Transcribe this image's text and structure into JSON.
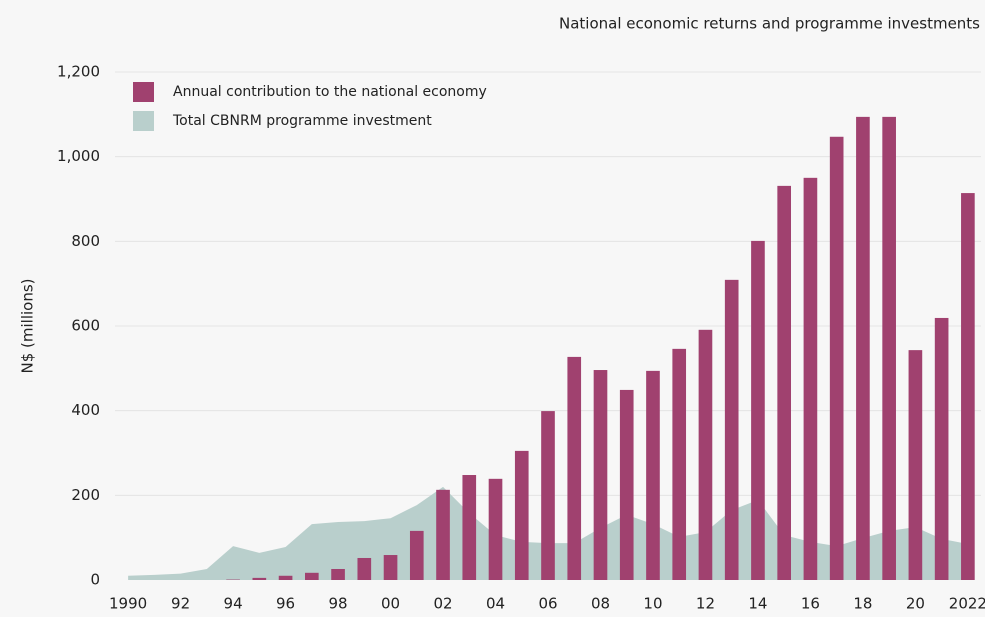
{
  "chart_data": {
    "type": "bar+area",
    "title": "National economic returns and programme investments",
    "ylabel": "N$ (millions)",
    "x": [
      1990,
      1991,
      1992,
      1993,
      1994,
      1995,
      1996,
      1997,
      1998,
      1999,
      2000,
      2001,
      2002,
      2003,
      2004,
      2005,
      2006,
      2007,
      2008,
      2009,
      2010,
      2011,
      2012,
      2013,
      2014,
      2015,
      2016,
      2017,
      2018,
      2019,
      2020,
      2021,
      2022
    ],
    "series": [
      {
        "name": "Annual contribution to the national economy",
        "color": "#a0416f",
        "kind": "bar",
        "values": [
          0,
          0,
          0,
          0,
          1,
          5,
          10,
          17,
          26,
          52,
          59,
          116,
          213,
          248,
          239,
          305,
          399,
          527,
          496,
          449,
          494,
          546,
          591,
          709,
          801,
          931,
          950,
          1047,
          1094,
          1094,
          543,
          619,
          914
        ]
      },
      {
        "name": "Total CBNRM programme investment",
        "color": "#b9cfcc",
        "kind": "area",
        "values": [
          10,
          12,
          15,
          26,
          80,
          64,
          78,
          132,
          137,
          139,
          146,
          177,
          220,
          158,
          106,
          90,
          87,
          87,
          123,
          154,
          132,
          102,
          113,
          165,
          189,
          106,
          90,
          80,
          99,
          116,
          125,
          97,
          85
        ]
      }
    ],
    "xlim": [
      1989.5,
      2022.5
    ],
    "xticks": [
      1990,
      {
        "value": 1992,
        "label": "92"
      },
      {
        "value": 1994,
        "label": "94"
      },
      {
        "value": 1996,
        "label": "96"
      },
      {
        "value": 1998,
        "label": "98"
      },
      {
        "value": 2000,
        "label": "00"
      },
      {
        "value": 2002,
        "label": "02"
      },
      {
        "value": 2004,
        "label": "04"
      },
      {
        "value": 2006,
        "label": "06"
      },
      {
        "value": 2008,
        "label": "08"
      },
      {
        "value": 2010,
        "label": "10"
      },
      {
        "value": 2012,
        "label": "12"
      },
      {
        "value": 2014,
        "label": "14"
      },
      {
        "value": 2016,
        "label": "16"
      },
      {
        "value": 2018,
        "label": "18"
      },
      {
        "value": 2020,
        "label": "20"
      },
      2022
    ],
    "ylim": [
      0,
      1200
    ],
    "yticks": [
      0,
      200,
      400,
      600,
      800,
      {
        "value": 1000,
        "label": "1,000"
      },
      {
        "value": 1200,
        "label": "1,200"
      }
    ],
    "grid": true
  }
}
